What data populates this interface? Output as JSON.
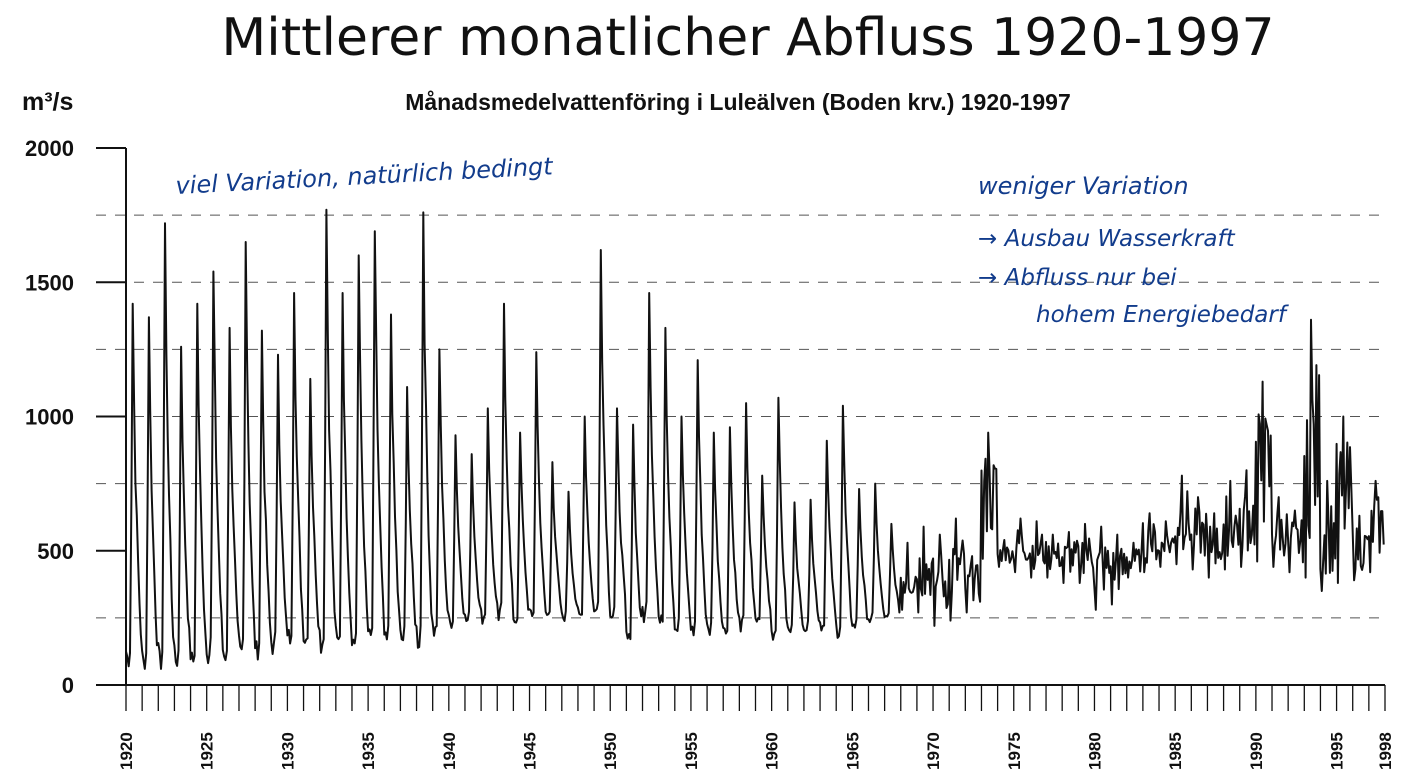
{
  "slide_title": "Mittlerer monatlicher Abfluss 1920-1997",
  "colors": {
    "ink": "#111111",
    "annotation": "#123c8c",
    "grid": "#555555"
  },
  "chart_data": {
    "type": "line",
    "title": "Månadsmedelvattenföring i Luleälven (Boden krv.) 1920-1997",
    "ylabel_unit": "m³/s",
    "xlim": [
      1920,
      1998
    ],
    "ylim": [
      0,
      2000
    ],
    "yticks": [
      0,
      500,
      1000,
      1500,
      2000
    ],
    "y_gridlines": [
      250,
      750,
      1000,
      1250,
      1500,
      1750
    ],
    "xticks": [
      1920,
      1925,
      1930,
      1935,
      1940,
      1945,
      1950,
      1955,
      1960,
      1965,
      1970,
      1975,
      1980,
      1985,
      1990,
      1995,
      1998
    ],
    "series": [
      {
        "resolution": "monthly",
        "annual_peaks": {
          "years": [
            1920,
            1921,
            1922,
            1923,
            1924,
            1925,
            1926,
            1927,
            1928,
            1929,
            1930,
            1931,
            1932,
            1933,
            1934,
            1935,
            1936,
            1937,
            1938,
            1939,
            1940,
            1941,
            1942,
            1943,
            1944,
            1945,
            1946,
            1947,
            1948,
            1949,
            1950,
            1951,
            1952,
            1953,
            1954,
            1955,
            1956,
            1957,
            1958,
            1959,
            1960,
            1961,
            1962,
            1963,
            1964,
            1965,
            1966,
            1967,
            1968,
            1969,
            1970,
            1971,
            1972,
            1973,
            1974,
            1975,
            1976,
            1977,
            1978,
            1979,
            1980,
            1981,
            1982,
            1983,
            1984,
            1985,
            1986,
            1987,
            1988,
            1989,
            1990,
            1991,
            1992,
            1993,
            1994,
            1995,
            1996,
            1997
          ],
          "peak": [
            1420,
            1370,
            1720,
            1260,
            1420,
            1540,
            1330,
            1650,
            1320,
            1230,
            1460,
            1140,
            1770,
            1460,
            1600,
            1690,
            1380,
            1110,
            1760,
            1250,
            930,
            860,
            1030,
            1420,
            940,
            1240,
            830,
            720,
            1000,
            1620,
            1030,
            970,
            1460,
            1330,
            1000,
            1210,
            940,
            960,
            1050,
            780,
            1070,
            680,
            690,
            910,
            1040,
            730,
            750,
            600,
            530,
            590,
            560,
            620,
            480,
            940,
            540,
            620,
            610,
            560,
            570,
            600,
            590,
            560,
            530,
            640,
            610,
            780,
            700,
            640,
            760,
            800,
            1130,
            700,
            650,
            1360,
            760,
            1000,
            630,
            760
          ],
          "low": [
            100,
            80,
            80,
            90,
            90,
            120,
            110,
            120,
            130,
            140,
            180,
            170,
            160,
            160,
            160,
            170,
            160,
            170,
            170,
            200,
            230,
            240,
            250,
            250,
            240,
            250,
            260,
            250,
            260,
            270,
            260,
            170,
            260,
            230,
            210,
            200,
            200,
            200,
            220,
            240,
            190,
            200,
            210,
            220,
            200,
            220,
            240,
            250,
            280,
            270,
            220,
            240,
            270,
            470,
            440,
            420,
            400,
            400,
            380,
            380,
            280,
            300,
            400,
            420,
            440,
            450,
            430,
            400,
            430,
            440,
            460,
            440,
            420,
            400,
            350,
            380,
            390,
            420
          ]
        }
      }
    ],
    "annotations": [
      "viel Variation, natürlich bedingt",
      "weniger Variation",
      "→ Ausbau Wasserkraft",
      "→ Abfluss nur bei",
      "hohem Energiebedarf"
    ]
  }
}
